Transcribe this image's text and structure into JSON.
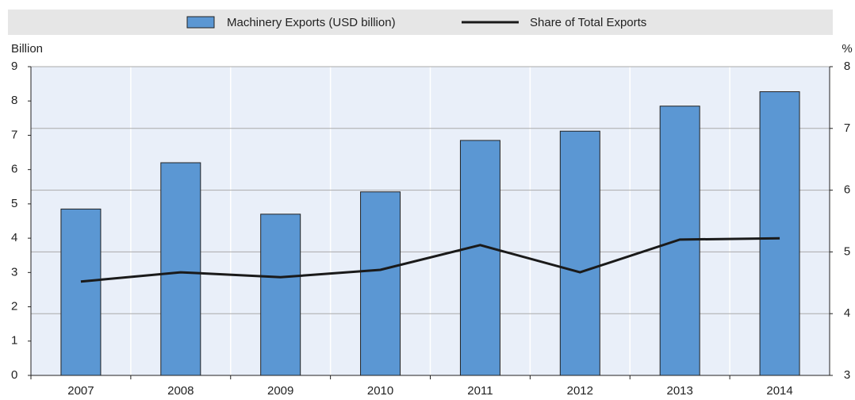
{
  "chart_data": {
    "type": "bar_line",
    "categories": [
      "2007",
      "2008",
      "2009",
      "2010",
      "2011",
      "2012",
      "2013",
      "2014"
    ],
    "series": [
      {
        "name": "Machinery Exports (USD billion)",
        "type": "bar",
        "color": "#5b97d3",
        "values": [
          4.85,
          6.2,
          4.7,
          5.35,
          6.85,
          7.12,
          7.85,
          8.27
        ]
      },
      {
        "name": "Share of Total Exports",
        "type": "line",
        "color": "#1a1a1a",
        "axis": "y2",
        "values": [
          4.52,
          4.67,
          4.59,
          4.71,
          5.11,
          4.67,
          5.2,
          5.22
        ]
      }
    ],
    "ylabel": "Billion",
    "y2label": "%",
    "ylim": [
      0,
      9
    ],
    "yticks": [
      0,
      1,
      2,
      3,
      4,
      5,
      6,
      7,
      8,
      9
    ],
    "y2lim": [
      3,
      8
    ],
    "y2ticks": [
      3,
      4,
      5,
      6,
      7,
      8
    ],
    "grid": "y2",
    "legend": "top"
  }
}
